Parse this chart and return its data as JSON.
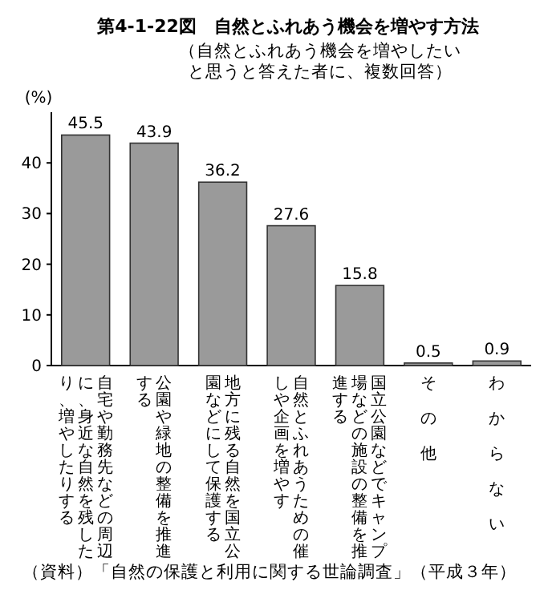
{
  "chart_data": {
    "type": "bar",
    "title": "第4-1-22図　自然とふれあう機会を増やす方法",
    "subtitle": "（自然とふれあう機会を増やしたいと思うと答えた者に、複数回答）",
    "ylabel": "(%)",
    "categories": [
      "自宅や勤務先などの周辺に、身近な自然を残したり、増やしたりする",
      "公園や緑地の整備を推進する",
      "地方に残る自然を国立公園などにして保護する",
      "自然とふれあうための催しや企画を増やす",
      "国立公園などでキャンプ場などの施設の整備を推進する",
      "その他",
      "わからない"
    ],
    "values": [
      45.5,
      43.9,
      36.2,
      27.6,
      15.8,
      0.5,
      0.9
    ],
    "color": "#9a9a9a",
    "data_labels": true,
    "ylim": [
      0,
      50
    ],
    "yticks": [
      0,
      10,
      20,
      30,
      40
    ],
    "annotations": [
      "（資料）「自然の保護と利用に関する世論調査」（平成３年）"
    ]
  }
}
